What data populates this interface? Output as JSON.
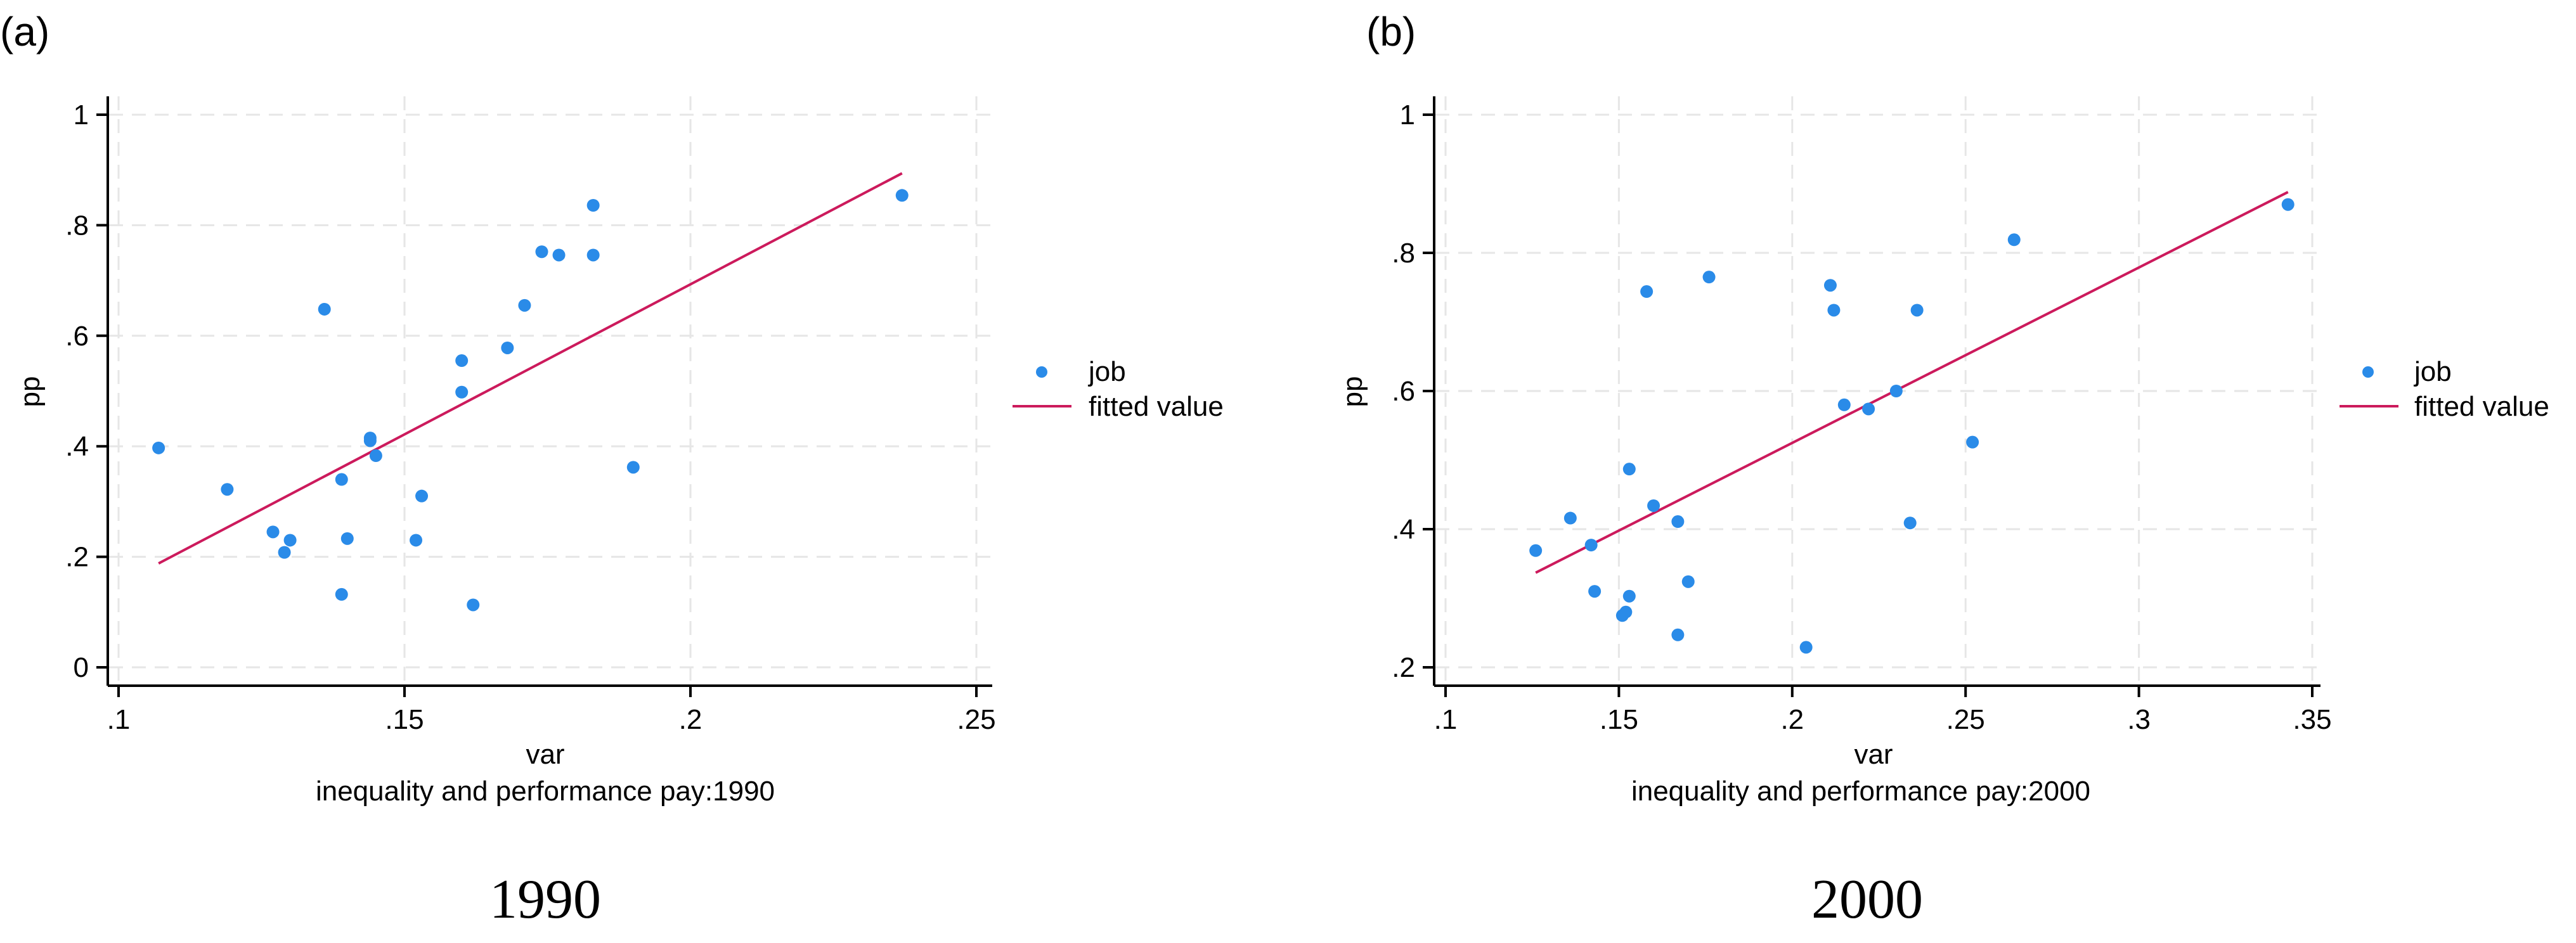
{
  "chart_data": [
    {
      "type": "scatter",
      "panel_label": "(a)",
      "title": "",
      "xlabel": "var",
      "subtitle": "inequality and performance pay:1990",
      "ylabel": "pp",
      "caption": "1990",
      "xlim": [
        0.1,
        0.25
      ],
      "ylim": [
        0,
        1
      ],
      "xticks": [
        0.1,
        0.15,
        0.2,
        0.25
      ],
      "xtick_labels": [
        ".1",
        ".15",
        ".2",
        ".25"
      ],
      "yticks": [
        0,
        0.2,
        0.4,
        0.6,
        0.8,
        1
      ],
      "ytick_labels": [
        "0",
        ".2",
        ".4",
        ".6",
        ".8",
        "1"
      ],
      "grid": true,
      "legend_placement": "right",
      "colors": {
        "points": "#2a8be8",
        "fit": "#cc1a5c"
      },
      "series": [
        {
          "name": "job",
          "kind": "scatter",
          "points": [
            [
              0.107,
              0.397
            ],
            [
              0.119,
              0.322
            ],
            [
              0.127,
              0.245
            ],
            [
              0.129,
              0.208
            ],
            [
              0.13,
              0.23
            ],
            [
              0.136,
              0.648
            ],
            [
              0.139,
              0.34
            ],
            [
              0.139,
              0.132
            ],
            [
              0.14,
              0.233
            ],
            [
              0.144,
              0.415
            ],
            [
              0.144,
              0.41
            ],
            [
              0.145,
              0.383
            ],
            [
              0.152,
              0.23
            ],
            [
              0.153,
              0.31
            ],
            [
              0.16,
              0.498
            ],
            [
              0.16,
              0.555
            ],
            [
              0.162,
              0.113
            ],
            [
              0.168,
              0.578
            ],
            [
              0.171,
              0.655
            ],
            [
              0.174,
              0.752
            ],
            [
              0.177,
              0.746
            ],
            [
              0.183,
              0.746
            ],
            [
              0.183,
              0.836
            ],
            [
              0.19,
              0.362
            ],
            [
              0.237,
              0.854
            ]
          ]
        },
        {
          "name": "fitted value",
          "kind": "line",
          "points": [
            [
              0.107,
              0.188
            ],
            [
              0.237,
              0.894
            ]
          ]
        }
      ]
    },
    {
      "type": "scatter",
      "panel_label": "(b)",
      "title": "",
      "xlabel": "var",
      "subtitle": "inequality and performance pay:2000",
      "ylabel": "pp",
      "caption": "2000",
      "xlim": [
        0.1,
        0.35
      ],
      "ylim": [
        0.2,
        1
      ],
      "xticks": [
        0.1,
        0.15,
        0.2,
        0.25,
        0.3,
        0.35
      ],
      "xtick_labels": [
        ".1",
        ".15",
        ".2",
        ".25",
        ".3",
        ".35"
      ],
      "yticks": [
        0.2,
        0.4,
        0.6,
        0.8,
        1
      ],
      "ytick_labels": [
        ".2",
        ".4",
        ".6",
        ".8",
        "1"
      ],
      "grid": true,
      "legend_placement": "right",
      "colors": {
        "points": "#2a8be8",
        "fit": "#cc1a5c"
      },
      "series": [
        {
          "name": "job",
          "kind": "scatter",
          "points": [
            [
              0.126,
              0.369
            ],
            [
              0.136,
              0.416
            ],
            [
              0.142,
              0.377
            ],
            [
              0.143,
              0.31
            ],
            [
              0.151,
              0.275
            ],
            [
              0.152,
              0.28
            ],
            [
              0.153,
              0.303
            ],
            [
              0.153,
              0.487
            ],
            [
              0.158,
              0.744
            ],
            [
              0.16,
              0.434
            ],
            [
              0.167,
              0.411
            ],
            [
              0.167,
              0.247
            ],
            [
              0.17,
              0.324
            ],
            [
              0.176,
              0.765
            ],
            [
              0.204,
              0.229
            ],
            [
              0.211,
              0.753
            ],
            [
              0.212,
              0.717
            ],
            [
              0.215,
              0.58
            ],
            [
              0.222,
              0.574
            ],
            [
              0.23,
              0.6
            ],
            [
              0.234,
              0.409
            ],
            [
              0.236,
              0.717
            ],
            [
              0.252,
              0.526
            ],
            [
              0.264,
              0.819
            ],
            [
              0.343,
              0.87
            ]
          ]
        },
        {
          "name": "fitted value",
          "kind": "line",
          "points": [
            [
              0.126,
              0.337
            ],
            [
              0.343,
              0.888
            ]
          ]
        }
      ]
    }
  ]
}
